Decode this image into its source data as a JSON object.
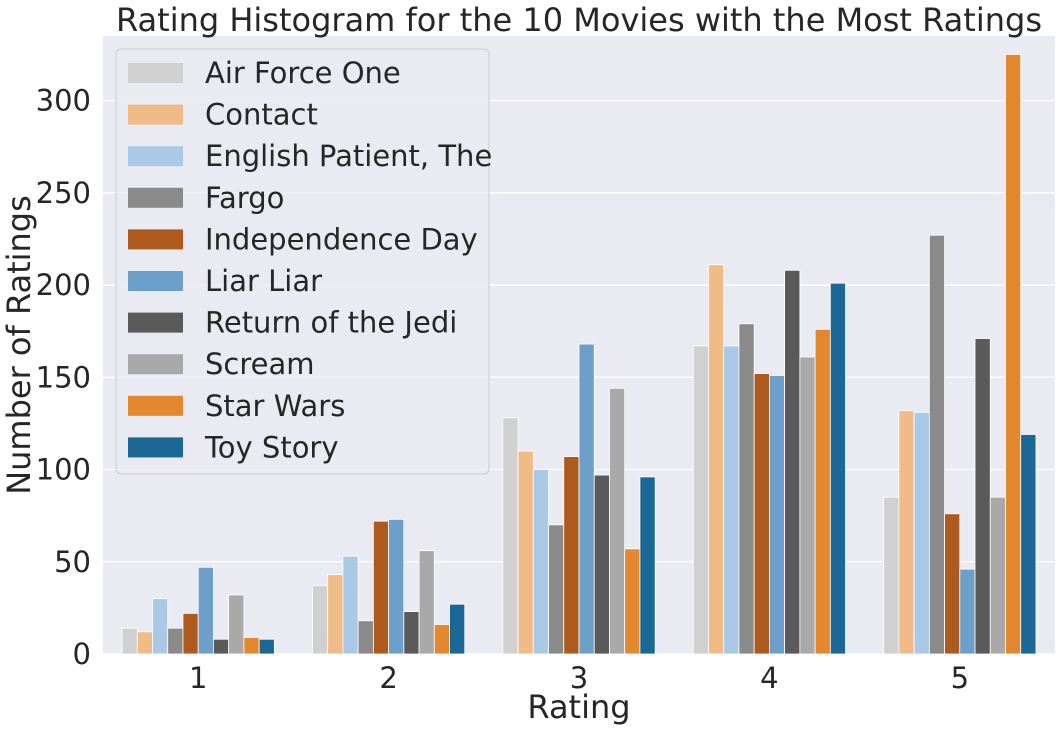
{
  "chart_data": {
    "type": "bar",
    "title": "Rating Histogram for the 10 Movies with the Most Ratings",
    "xlabel": "Rating",
    "ylabel": "Number of Ratings",
    "categories": [
      "1",
      "2",
      "3",
      "4",
      "5"
    ],
    "ylim": [
      0,
      335
    ],
    "yticks": [
      0,
      50,
      100,
      150,
      200,
      250,
      300
    ],
    "grid": true,
    "legend_position": "top-left",
    "series": [
      {
        "name": "Air Force One",
        "color": "#d0d0d0",
        "values": [
          14,
          37,
          128,
          167,
          85
        ]
      },
      {
        "name": "Contact",
        "color": "#f1bb88",
        "values": [
          12,
          43,
          110,
          211,
          132
        ]
      },
      {
        "name": "English Patient, The",
        "color": "#a9c9e6",
        "values": [
          30,
          53,
          100,
          167,
          131
        ]
      },
      {
        "name": "Fargo",
        "color": "#8a8a8a",
        "values": [
          14,
          18,
          70,
          179,
          227
        ]
      },
      {
        "name": "Independence Day",
        "color": "#ae5a1e",
        "values": [
          22,
          72,
          107,
          152,
          76
        ]
      },
      {
        "name": "Liar Liar",
        "color": "#6c9fc9",
        "values": [
          47,
          73,
          168,
          151,
          46
        ]
      },
      {
        "name": "Return of the Jedi",
        "color": "#5a5a5a",
        "values": [
          8,
          23,
          97,
          208,
          171
        ]
      },
      {
        "name": "Scream",
        "color": "#a9a9a9",
        "values": [
          32,
          56,
          144,
          161,
          85
        ]
      },
      {
        "name": "Star Wars",
        "color": "#e3882e",
        "values": [
          9,
          16,
          57,
          176,
          325
        ]
      },
      {
        "name": "Toy Story",
        "color": "#1b6896",
        "values": [
          8,
          27,
          96,
          201,
          119
        ]
      }
    ]
  }
}
